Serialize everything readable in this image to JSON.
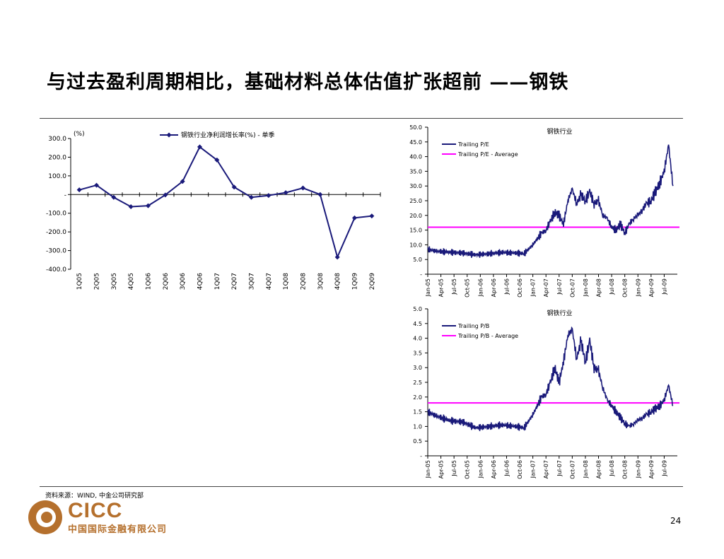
{
  "title": "与过去盈利周期相比，基础材料总体估值扩张超前 ——钢铁",
  "source": "资料来源：WIND, 中金公司研究部",
  "logo": {
    "text": "CICC",
    "subtitle": "中国国际金融有限公司",
    "color": "#b5702d"
  },
  "page_number": "24",
  "chart_data": [
    {
      "type": "line",
      "unit_label": "(%)",
      "series": [
        {
          "name": "钢铁行业净利润增长率(%) - 单季",
          "color": "#1a1a7a",
          "marker": "diamond",
          "values": [
            25,
            50,
            -15,
            -65,
            -60,
            -2,
            70,
            255,
            185,
            40,
            -15,
            -5,
            10,
            35,
            0,
            -335,
            -125,
            -115
          ]
        }
      ],
      "categories": [
        "1Q05",
        "2Q05",
        "3Q05",
        "4Q05",
        "1Q06",
        "2Q06",
        "3Q06",
        "4Q06",
        "1Q07",
        "2Q07",
        "3Q07",
        "4Q07",
        "1Q08",
        "2Q08",
        "3Q08",
        "4Q08",
        "1Q09",
        "2Q09"
      ],
      "ylim": [
        -400,
        300
      ],
      "yticks": [
        "300.0",
        "200.0",
        "100.0",
        "-",
        "-100.0",
        "-200.0",
        "-300.0",
        "-400.0"
      ],
      "legend_position": "top"
    },
    {
      "type": "line",
      "title": "钢铁行业",
      "series": [
        {
          "name": "Trailing  P/E",
          "color": "#1a1a7a",
          "x": [
            "2005-01",
            "2005-03",
            "2005-06",
            "2005-09",
            "2005-12",
            "2006-03",
            "2006-06",
            "2006-09",
            "2006-11",
            "2007-01",
            "2007-03",
            "2007-04",
            "2007-05",
            "2007-06",
            "2007-07",
            "2007-08",
            "2007-09",
            "2007-10",
            "2007-11",
            "2007-12",
            "2008-01",
            "2008-02",
            "2008-03",
            "2008-04",
            "2008-05",
            "2008-06",
            "2008-07",
            "2008-08",
            "2008-09",
            "2008-10",
            "2008-11",
            "2008-12",
            "2009-01",
            "2009-02",
            "2009-03",
            "2009-04",
            "2009-05",
            "2009-06",
            "2009-07",
            "2009-08",
            "2009-09"
          ],
          "values": [
            8.5,
            7.8,
            7.5,
            7.2,
            6.6,
            7.0,
            7.4,
            7.2,
            7.0,
            10,
            14,
            15,
            18,
            21,
            20,
            17,
            25,
            29,
            24,
            27,
            25,
            28,
            24,
            25,
            20,
            19,
            16,
            15,
            17,
            14,
            17,
            19,
            20,
            22,
            24,
            25,
            28,
            31,
            35,
            44,
            30
          ]
        },
        {
          "name": "Trailing  P/E - Average",
          "color": "#ff00ff",
          "constant": 16.0
        }
      ],
      "x_ticks": [
        "Jan-05",
        "Apr-05",
        "Jul-05",
        "Oct-05",
        "Jan-06",
        "Apr-06",
        "Jul-06",
        "Oct-06",
        "Jan-07",
        "Apr-07",
        "Jul-07",
        "Oct-07",
        "Jan-08",
        "Apr-08",
        "Jul-08",
        "Oct-08",
        "Jan-09",
        "Apr-09",
        "Jul-09"
      ],
      "ylim": [
        0,
        50
      ],
      "yticks": [
        "50.0",
        "45.0",
        "40.0",
        "35.0",
        "30.0",
        "25.0",
        "20.0",
        "15.0",
        "10.0",
        "5.0",
        "-"
      ],
      "legend_position": "top-left"
    },
    {
      "type": "line",
      "title": "钢铁行业",
      "series": [
        {
          "name": "Trailing P/B",
          "color": "#1a1a7a",
          "x": [
            "2005-01",
            "2005-03",
            "2005-06",
            "2005-09",
            "2005-12",
            "2006-03",
            "2006-06",
            "2006-09",
            "2006-11",
            "2007-01",
            "2007-03",
            "2007-04",
            "2007-05",
            "2007-06",
            "2007-07",
            "2007-08",
            "2007-09",
            "2007-10",
            "2007-11",
            "2007-12",
            "2008-01",
            "2008-02",
            "2008-03",
            "2008-04",
            "2008-05",
            "2008-06",
            "2008-07",
            "2008-08",
            "2008-09",
            "2008-10",
            "2008-11",
            "2008-12",
            "2009-01",
            "2009-02",
            "2009-03",
            "2009-04",
            "2009-05",
            "2009-06",
            "2009-07",
            "2009-08",
            "2009-09"
          ],
          "values": [
            1.5,
            1.35,
            1.2,
            1.15,
            0.95,
            1.0,
            1.05,
            1.0,
            0.95,
            1.4,
            2.0,
            2.1,
            2.5,
            3.0,
            2.5,
            3.2,
            4.1,
            4.3,
            3.3,
            3.9,
            3.2,
            3.9,
            3.0,
            2.9,
            2.3,
            1.9,
            1.7,
            1.5,
            1.3,
            1.1,
            1.0,
            1.1,
            1.2,
            1.3,
            1.4,
            1.5,
            1.6,
            1.7,
            1.9,
            2.4,
            1.7
          ]
        },
        {
          "name": "Trailing P/B - Average",
          "color": "#ff00ff",
          "constant": 1.8
        }
      ],
      "x_ticks": [
        "Jan-05",
        "Apr-05",
        "Jul-05",
        "Oct-05",
        "Jan-06",
        "Apr-06",
        "Jul-06",
        "Oct-06",
        "Jan-07",
        "Apr-07",
        "Jul-07",
        "Oct-07",
        "Jan-08",
        "Apr-08",
        "Jul-08",
        "Oct-08",
        "Jan-09",
        "Apr-09",
        "Jul-09"
      ],
      "ylim": [
        0,
        5
      ],
      "yticks": [
        "5.0",
        "4.5",
        "4.0",
        "3.5",
        "3.0",
        "2.5",
        "2.0",
        "1.5",
        "1.0",
        "0.5",
        "-"
      ],
      "legend_position": "top-left"
    }
  ]
}
